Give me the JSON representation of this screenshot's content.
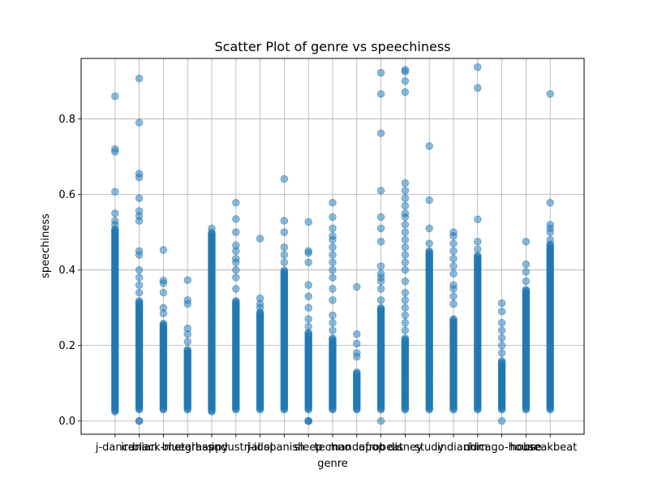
{
  "chart_data": {
    "type": "scatter",
    "title": "Scatter Plot of genre vs speechiness",
    "xlabel": "genre",
    "ylabel": "speechiness",
    "categories": [
      "j-dance",
      "iranian",
      "black-metal",
      "bluegrass",
      "happy",
      "industrial",
      "j-idol",
      "spanish",
      "sleep",
      "techno",
      "mandopop",
      "afrobeat",
      "disney",
      "study",
      "indian",
      "idm",
      "chicago-house",
      "house",
      "breakbeat"
    ],
    "yticks": [
      "0.0",
      "0.2",
      "0.4",
      "0.6",
      "0.8"
    ],
    "ylim": [
      -0.035,
      0.96
    ],
    "grid": true,
    "marker_color": "#1f77b4",
    "marker_opacity": 0.5,
    "series": [
      {
        "category": "j-dance",
        "dense_range": [
          0.025,
          0.51
        ],
        "sparse": [
          0.52,
          0.53,
          0.55,
          0.607,
          0.713,
          0.72,
          0.86
        ]
      },
      {
        "category": "iranian",
        "dense_range": [
          0.03,
          0.32
        ],
        "sparse": [
          0.0,
          0.0,
          0.34,
          0.36,
          0.38,
          0.4,
          0.44,
          0.45,
          0.53,
          0.543,
          0.556,
          0.59,
          0.645,
          0.655,
          0.79,
          0.907
        ]
      },
      {
        "category": "black-metal",
        "dense_range": [
          0.03,
          0.26
        ],
        "sparse": [
          0.285,
          0.3,
          0.34,
          0.365,
          0.372,
          0.453
        ]
      },
      {
        "category": "bluegrass",
        "dense_range": [
          0.03,
          0.19
        ],
        "sparse": [
          0.21,
          0.23,
          0.245,
          0.31,
          0.32,
          0.373
        ]
      },
      {
        "category": "happy",
        "dense_range": [
          0.025,
          0.5
        ],
        "sparse": [
          0.51
        ]
      },
      {
        "category": "industrial",
        "dense_range": [
          0.03,
          0.32
        ],
        "sparse": [
          0.35,
          0.38,
          0.4,
          0.42,
          0.43,
          0.45,
          0.465,
          0.5,
          0.535,
          0.578
        ]
      },
      {
        "category": "j-idol",
        "dense_range": [
          0.03,
          0.29
        ],
        "sparse": [
          0.3,
          0.31,
          0.325,
          0.483
        ]
      },
      {
        "category": "spanish",
        "dense_range": [
          0.03,
          0.4
        ],
        "sparse": [
          0.42,
          0.44,
          0.46,
          0.5,
          0.53,
          0.641
        ]
      },
      {
        "category": "sleep",
        "dense_range": [
          0.03,
          0.235
        ],
        "sparse": [
          0.0,
          0.0,
          0.0,
          0.25,
          0.27,
          0.3,
          0.33,
          0.36,
          0.42,
          0.445,
          0.45,
          0.527
        ]
      },
      {
        "category": "techno",
        "dense_range": [
          0.03,
          0.22
        ],
        "sparse": [
          0.24,
          0.26,
          0.28,
          0.32,
          0.35,
          0.38,
          0.4,
          0.42,
          0.44,
          0.46,
          0.48,
          0.49,
          0.51,
          0.54,
          0.578
        ]
      },
      {
        "category": "mandopop",
        "dense_range": [
          0.03,
          0.13
        ],
        "sparse": [
          0.17,
          0.18,
          0.205,
          0.23,
          0.355
        ]
      },
      {
        "category": "afrobeat",
        "dense_range": [
          0.03,
          0.3
        ],
        "sparse": [
          0.0,
          0.32,
          0.35,
          0.37,
          0.38,
          0.39,
          0.41,
          0.475,
          0.51,
          0.54,
          0.61,
          0.762,
          0.866,
          0.922
        ]
      },
      {
        "category": "disney",
        "dense_range": [
          0.03,
          0.22
        ],
        "sparse": [
          0.24,
          0.26,
          0.28,
          0.3,
          0.32,
          0.34,
          0.37,
          0.4,
          0.42,
          0.44,
          0.46,
          0.48,
          0.5,
          0.52,
          0.54,
          0.55,
          0.57,
          0.59,
          0.61,
          0.63,
          0.871,
          0.9,
          0.925,
          0.93
        ]
      },
      {
        "category": "study",
        "dense_range": [
          0.03,
          0.45
        ],
        "sparse": [
          0.47,
          0.51,
          0.585,
          0.728
        ]
      },
      {
        "category": "indian",
        "dense_range": [
          0.03,
          0.27
        ],
        "sparse": [
          0.31,
          0.33,
          0.35,
          0.36,
          0.39,
          0.41,
          0.43,
          0.45,
          0.47,
          0.49,
          0.5
        ]
      },
      {
        "category": "idm",
        "dense_range": [
          0.03,
          0.44
        ],
        "sparse": [
          0.455,
          0.475,
          0.534,
          0.882,
          0.937
        ]
      },
      {
        "category": "chicago-house",
        "dense_range": [
          0.03,
          0.16
        ],
        "sparse": [
          0.0,
          0.18,
          0.2,
          0.22,
          0.24,
          0.26,
          0.29,
          0.312
        ]
      },
      {
        "category": "house",
        "dense_range": [
          0.03,
          0.35
        ],
        "sparse": [
          0.37,
          0.395,
          0.415,
          0.475
        ]
      },
      {
        "category": "breakbeat",
        "dense_range": [
          0.03,
          0.47
        ],
        "sparse": [
          0.48,
          0.5,
          0.51,
          0.52,
          0.578,
          0.866
        ]
      }
    ]
  }
}
